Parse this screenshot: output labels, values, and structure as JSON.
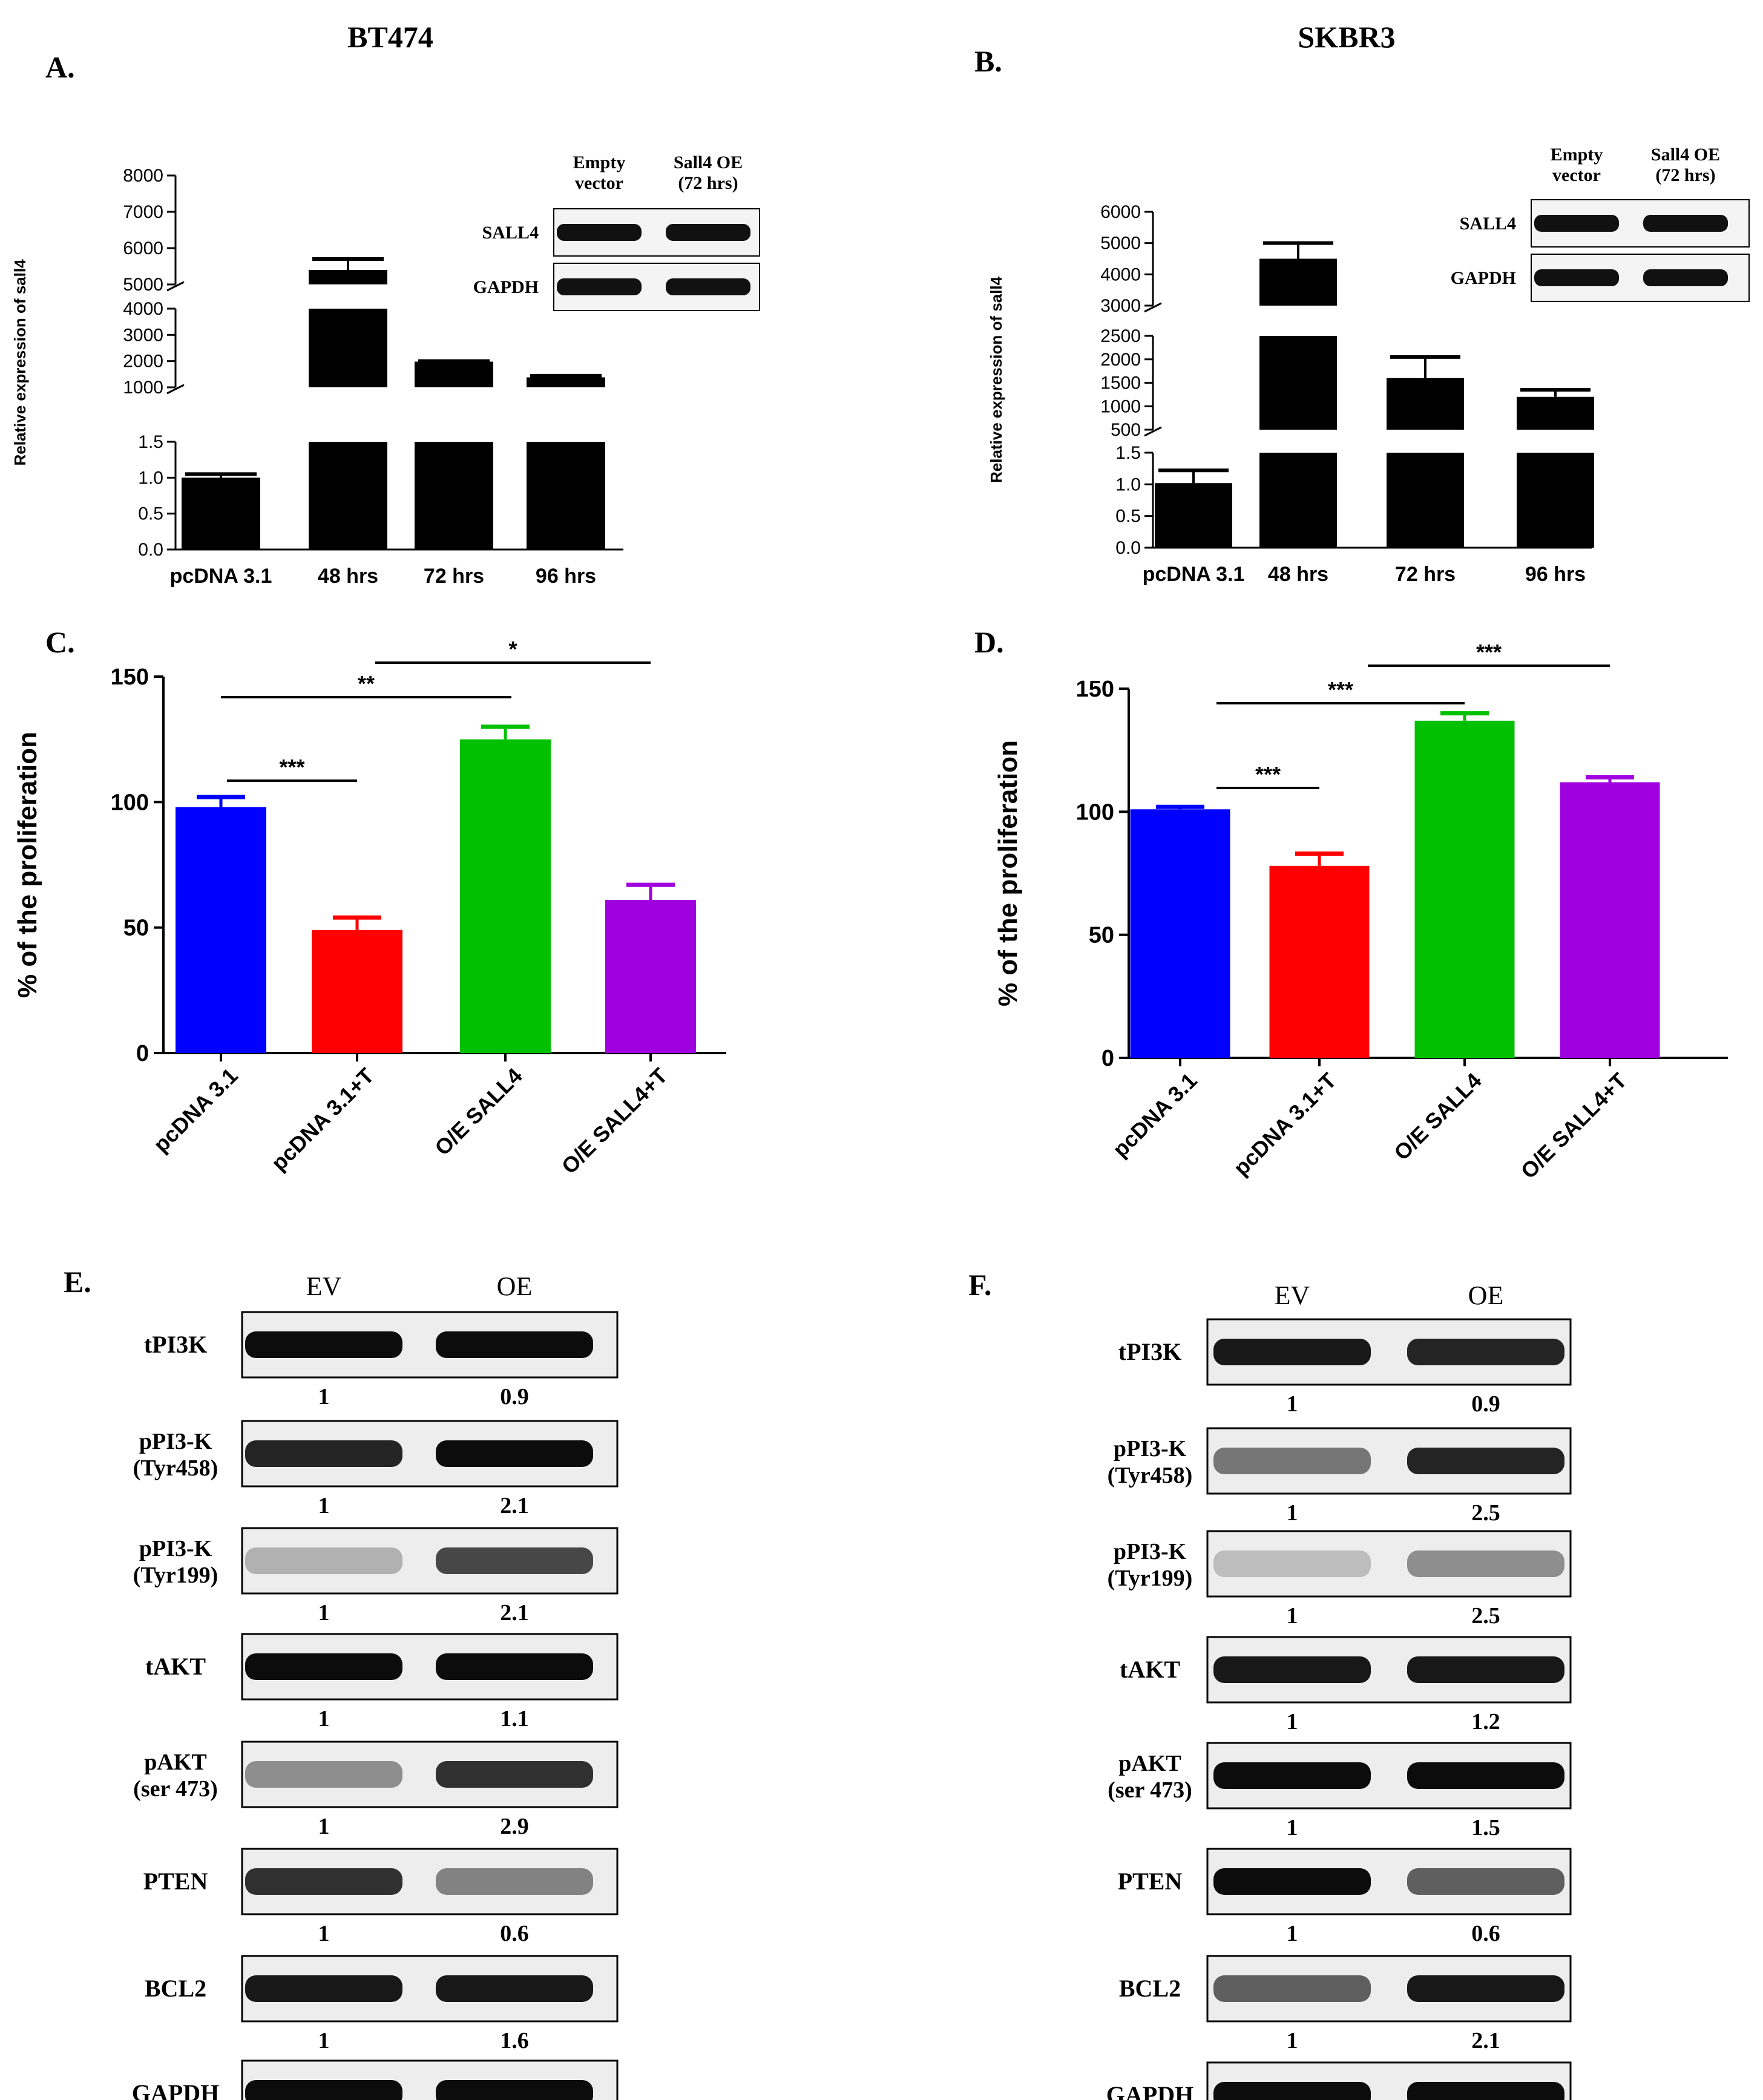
{
  "colors": {
    "ink": "#000000",
    "blue": "#0000ff",
    "red": "#ff0000",
    "green": "#00c000",
    "purple": "#a000e0"
  },
  "headers": {
    "left": "BT474",
    "right": "SKBR3"
  },
  "panel_labels": {
    "a": "A.",
    "b": "B.",
    "c": "C.",
    "d": "D.",
    "e": "E.",
    "f": "F."
  },
  "chart_data": [
    {
      "id": "A",
      "type": "bar",
      "title": "",
      "ylabel": "Relative expression of sall4",
      "categories": [
        "pcDNA 3.1",
        "48 hrs",
        "72 hrs",
        "96 hrs"
      ],
      "values": [
        1.0,
        5400,
        1980,
        1380
      ],
      "errors": [
        0.05,
        300,
        20,
        60
      ],
      "broken_axis": [
        {
          "range": [
            0,
            1.5
          ],
          "ticks": [
            "0.0",
            "0.5",
            "1.0",
            "1.5"
          ]
        },
        {
          "range": [
            1000,
            4000
          ],
          "ticks": [
            "1000",
            "2000",
            "3000",
            "4000"
          ]
        },
        {
          "range": [
            5000,
            8000
          ],
          "ticks": [
            "5000",
            "6000",
            "7000",
            "8000"
          ]
        }
      ],
      "inset_blot": {
        "headers": [
          "Empty vector",
          "Sall4 OE (72 hrs)"
        ],
        "rows": [
          "SALL4",
          "GAPDH"
        ]
      }
    },
    {
      "id": "B",
      "type": "bar",
      "title": "",
      "ylabel": "Relative expression of sall4",
      "categories": [
        "pcDNA 3.1",
        "48 hrs",
        "72 hrs",
        "96 hrs"
      ],
      "values": [
        1.02,
        4500,
        1600,
        1200
      ],
      "errors": [
        0.2,
        500,
        450,
        150
      ],
      "broken_axis": [
        {
          "range": [
            0,
            1.5
          ],
          "ticks": [
            "0.0",
            "0.5",
            "1.0",
            "1.5"
          ]
        },
        {
          "range": [
            500,
            2500
          ],
          "ticks": [
            "500",
            "1000",
            "1500",
            "2000",
            "2500"
          ]
        },
        {
          "range": [
            3000,
            6000
          ],
          "ticks": [
            "3000",
            "4000",
            "5000",
            "6000"
          ]
        }
      ],
      "inset_blot": {
        "headers": [
          "Empty vector",
          "Sall4 OE (72 hrs)"
        ],
        "rows": [
          "SALL4",
          "GAPDH"
        ]
      }
    },
    {
      "id": "C",
      "type": "bar",
      "title": "",
      "ylabel": "% of the proliferation",
      "categories": [
        "pcDNA 3.1",
        "pcDNA 3.1+T",
        "O/E SALL4",
        "O/E SALL4+T"
      ],
      "values": [
        98,
        49,
        125,
        61
      ],
      "errors": [
        4,
        5,
        5,
        6
      ],
      "ylim": [
        0,
        150
      ],
      "yticks": [
        "0",
        "50",
        "100",
        "150"
      ],
      "significance": [
        {
          "from": 0,
          "to": 1,
          "label": "***"
        },
        {
          "from": 0,
          "to": 2,
          "label": "**"
        },
        {
          "from": 1,
          "to": 3,
          "label": "*"
        }
      ]
    },
    {
      "id": "D",
      "type": "bar",
      "title": "",
      "ylabel": "% of the proliferation",
      "categories": [
        "pcDNA 3.1",
        "pcDNA 3.1+T",
        "O/E SALL4",
        "O/E SALL4+T"
      ],
      "values": [
        101,
        78,
        137,
        112
      ],
      "errors": [
        1,
        5,
        3,
        2
      ],
      "ylim": [
        0,
        150
      ],
      "yticks": [
        "0",
        "50",
        "100",
        "150"
      ],
      "significance": [
        {
          "from": 0,
          "to": 1,
          "label": "***"
        },
        {
          "from": 0,
          "to": 2,
          "label": "***"
        },
        {
          "from": 1,
          "to": 3,
          "label": "***"
        }
      ]
    }
  ],
  "blots": [
    {
      "id": "E",
      "lanes": [
        "EV",
        "OE"
      ],
      "rows": [
        {
          "label": [
            "tPI3K"
          ],
          "values": [
            "1",
            "0.9"
          ]
        },
        {
          "label": [
            "pPI3-K",
            "(Tyr458)"
          ],
          "values": [
            "1",
            "2.1"
          ]
        },
        {
          "label": [
            "pPI3-K",
            "(Tyr199)"
          ],
          "values": [
            "1",
            "2.1"
          ]
        },
        {
          "label": [
            "tAKT"
          ],
          "values": [
            "1",
            "1.1"
          ]
        },
        {
          "label": [
            "pAKT",
            "(ser 473)"
          ],
          "values": [
            "1",
            "2.9"
          ]
        },
        {
          "label": [
            "PTEN"
          ],
          "values": [
            "1",
            "0.6"
          ]
        },
        {
          "label": [
            "BCL2"
          ],
          "values": [
            "1",
            "1.6"
          ]
        },
        {
          "label": [
            "GAPDH"
          ],
          "values": []
        }
      ]
    },
    {
      "id": "F",
      "lanes": [
        "EV",
        "OE"
      ],
      "rows": [
        {
          "label": [
            "tPI3K"
          ],
          "values": [
            "1",
            "0.9"
          ]
        },
        {
          "label": [
            "pPI3-K",
            "(Tyr458)"
          ],
          "values": [
            "1",
            "2.5"
          ]
        },
        {
          "label": [
            "pPI3-K",
            "(Tyr199)"
          ],
          "values": [
            "1",
            "2.5"
          ]
        },
        {
          "label": [
            "tAKT"
          ],
          "values": [
            "1",
            "1.2"
          ]
        },
        {
          "label": [
            "pAKT",
            "(ser 473)"
          ],
          "values": [
            "1",
            "1.5"
          ]
        },
        {
          "label": [
            "PTEN"
          ],
          "values": [
            "1",
            "0.6"
          ]
        },
        {
          "label": [
            "BCL2"
          ],
          "values": [
            "1",
            "2.1"
          ]
        },
        {
          "label": [
            "GAPDH"
          ],
          "values": []
        }
      ]
    }
  ]
}
